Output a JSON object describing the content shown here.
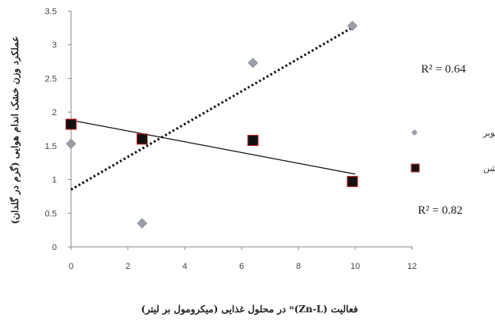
{
  "chart_data": {
    "type": "scatter",
    "xlabel": "فعالیت (Zn-L)ⁿ در محلول غذایی (میکرومول بر لیتر)",
    "ylabel": "عملکرد وزن خشک اندام هوایی (گرم در گلدان)",
    "xlim": [
      0,
      12
    ],
    "ylim": [
      0,
      3.5
    ],
    "x_ticks": [
      "0",
      "2",
      "4",
      "6",
      "8",
      "10",
      "12"
    ],
    "y_ticks": [
      "0",
      "0.5",
      "1",
      "1.5",
      "2",
      "2.5",
      "3",
      "3.5"
    ],
    "grid": false,
    "legend_position": "right",
    "series": [
      {
        "name": "کویر",
        "marker": "diamond",
        "color": "#9a9ea6",
        "points": [
          {
            "x": 0,
            "y": 1.53
          },
          {
            "x": 2.5,
            "y": 0.35
          },
          {
            "x": 6.4,
            "y": 2.73
          },
          {
            "x": 9.9,
            "y": 3.28
          }
        ],
        "trendline": {
          "style": "dotted",
          "from": [
            0,
            0.85
          ],
          "to": [
            10,
            3.28
          ]
        },
        "r2": "R² = 0.64"
      },
      {
        "name": "بک کراس روشن",
        "marker": "square",
        "color": "#111111",
        "points": [
          {
            "x": 0,
            "y": 1.82
          },
          {
            "x": 2.5,
            "y": 1.6
          },
          {
            "x": 6.4,
            "y": 1.58
          },
          {
            "x": 9.9,
            "y": 0.97
          }
        ],
        "trendline": {
          "style": "solid",
          "from": [
            0,
            1.88
          ],
          "to": [
            10,
            1.08
          ]
        },
        "r2": "R² = 0.82"
      }
    ]
  }
}
